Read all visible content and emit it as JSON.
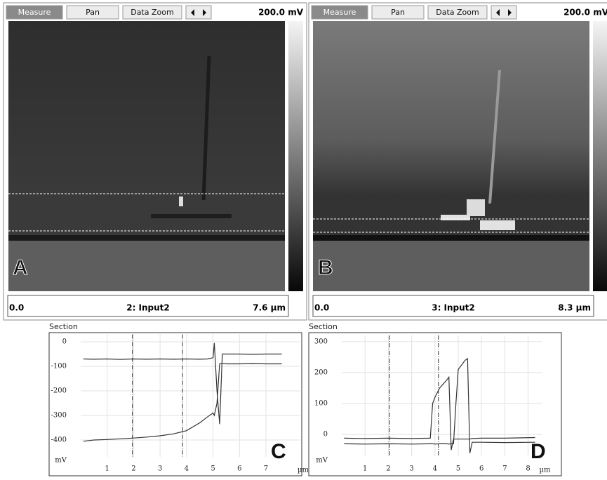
{
  "panels": [
    {
      "toolbar": [
        "Measure",
        "Pan",
        "Data Zoom"
      ],
      "scale": "200.0 mV",
      "x_start": "0.0",
      "channel": "2: Input2",
      "x_end": "7.6 µm",
      "letter": "A"
    },
    {
      "toolbar": [
        "Measure",
        "Pan",
        "Data Zoom"
      ],
      "scale": "200.0 mV",
      "x_start": "0.0",
      "channel": "3: Input2",
      "x_end": "8.3 µm",
      "letter": "B"
    }
  ],
  "chart_data": [
    {
      "type": "line",
      "title": "Section",
      "letter": "C",
      "y_unit": "mV",
      "x_unit": "µm",
      "x": [
        0.1,
        0.5,
        1,
        1.5,
        2,
        2.5,
        3,
        3.5,
        4,
        4.5,
        4.8,
        5.0,
        5.05,
        5.15,
        5.25,
        5.35,
        5.5,
        6,
        6.5,
        7,
        7.6
      ],
      "series": [
        {
          "color": "#333333",
          "values": [
            -70,
            -71,
            -70,
            -72,
            -70,
            -71,
            -70,
            -71,
            -70,
            -71,
            -70,
            -65,
            -5,
            -200,
            -335,
            -50,
            -50,
            -50,
            -51,
            -50,
            -50
          ]
        },
        {
          "color": "#333333",
          "values": [
            -405,
            -400,
            -398,
            -395,
            -392,
            -388,
            -383,
            -375,
            -362,
            -330,
            -305,
            -290,
            -300,
            -250,
            -90,
            -88,
            -90,
            -90,
            -89,
            -90,
            -90
          ]
        }
      ],
      "cursors": [
        1.95,
        3.85
      ],
      "xlim": [
        0,
        8.3
      ],
      "ylim": [
        -470,
        30
      ],
      "xticks": [
        1,
        2,
        3,
        4,
        5,
        6,
        7
      ],
      "yticks": [
        0,
        -100,
        -200,
        -300,
        -400
      ],
      "grid": true
    },
    {
      "type": "line",
      "title": "Section",
      "letter": "D",
      "y_unit": "mV",
      "x_unit": "µm",
      "x": [
        0.1,
        1,
        2,
        3,
        3.8,
        3.9,
        4.0,
        4.2,
        4.5,
        4.6,
        4.7,
        4.8,
        4.9,
        5.0,
        5.3,
        5.4,
        5.5,
        5.6,
        6,
        7,
        8.3
      ],
      "series": [
        {
          "color": "#333333",
          "values": [
            -12,
            -13,
            -12,
            -13,
            -12,
            100,
            120,
            150,
            175,
            185,
            -50,
            -15,
            -15,
            -15,
            -15,
            -15,
            -15,
            -13,
            -12,
            -12,
            -10
          ]
        },
        {
          "color": "#333333",
          "values": [
            -30,
            -31,
            -30,
            -31,
            -30,
            -30,
            -31,
            -30,
            -30,
            -31,
            -30,
            -30,
            100,
            210,
            240,
            245,
            -60,
            -25,
            -25,
            -26,
            -25
          ]
        }
      ],
      "cursors": [
        2.05,
        4.15
      ],
      "xlim": [
        0,
        8.6
      ],
      "ylim": [
        -70,
        320
      ],
      "xticks": [
        1,
        2,
        3,
        4,
        5,
        6,
        7,
        8
      ],
      "yticks": [
        0,
        100,
        200,
        300
      ],
      "grid": true
    }
  ]
}
